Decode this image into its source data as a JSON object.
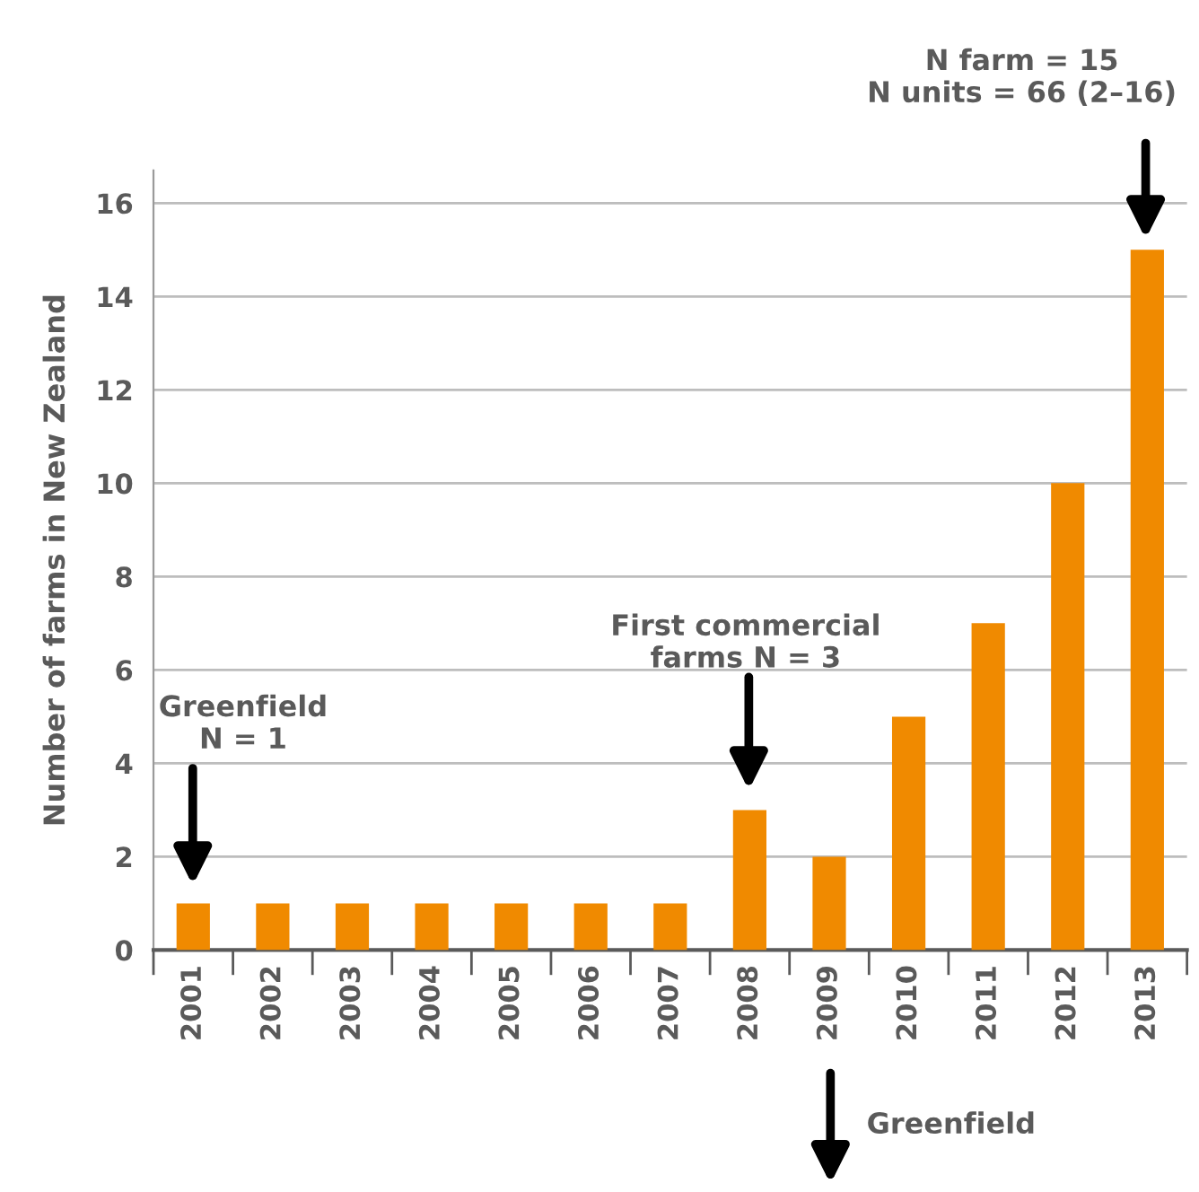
{
  "chart_data": {
    "type": "bar",
    "ylabel": "Number of farms in New Zealand",
    "categories": [
      "2001",
      "2002",
      "2003",
      "2004",
      "2005",
      "2006",
      "2007",
      "2008",
      "2009",
      "2010",
      "2011",
      "2012",
      "2013"
    ],
    "values": [
      1,
      1,
      1,
      1,
      1,
      1,
      1,
      3,
      2,
      5,
      7,
      10,
      15
    ],
    "color": "#f08a00",
    "ylim": [
      0,
      16.7
    ],
    "yticks": [
      0,
      2,
      4,
      6,
      8,
      10,
      12,
      14,
      16
    ],
    "grid": "y",
    "legend": false,
    "annotations": [
      "Greenfield\nN = 1",
      "First commercial\nfarms N = 3",
      "N farm = 15\nN units = 66 (2–16)",
      "Greenfield"
    ]
  }
}
